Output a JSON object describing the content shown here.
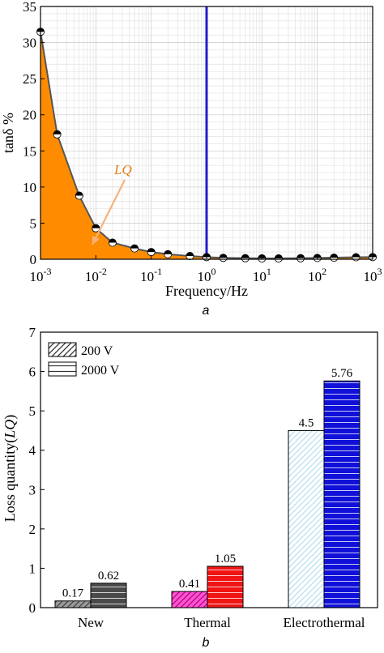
{
  "chart_data": [
    {
      "type": "area",
      "subplot_label": "a",
      "xlabel": "Frequency/Hz",
      "ylabel": "tanδ %",
      "xscale": "log",
      "xlim": [
        0.001,
        1000
      ],
      "ylim": [
        0,
        35
      ],
      "xticks": [
        0.001,
        0.01,
        0.1,
        1,
        10,
        100,
        1000
      ],
      "xtick_labels": [
        {
          "base": "10",
          "exp": "-3"
        },
        {
          "base": "10",
          "exp": "-2"
        },
        {
          "base": "10",
          "exp": "-1"
        },
        {
          "base": "10",
          "exp": "0"
        },
        {
          "base": "10",
          "exp": "1"
        },
        {
          "base": "10",
          "exp": "2"
        },
        {
          "base": "10",
          "exp": "3"
        }
      ],
      "yticks": [
        "0",
        "5",
        "10",
        "15",
        "20",
        "25",
        "30",
        "35"
      ],
      "grid": true,
      "fill_color": "#ff8c00",
      "line_color": "#555555",
      "marker_style": "half-filled circle",
      "x": [
        0.001,
        0.002,
        0.005,
        0.01,
        0.02,
        0.05,
        0.1,
        0.2,
        0.5,
        1,
        2,
        5,
        10,
        20,
        50,
        100,
        200,
        500,
        1000
      ],
      "y": [
        31.5,
        17.3,
        8.8,
        4.3,
        2.3,
        1.5,
        1.0,
        0.7,
        0.45,
        0.3,
        0.2,
        0.15,
        0.12,
        0.12,
        0.15,
        0.18,
        0.22,
        0.28,
        0.3
      ],
      "vline": {
        "x": 1,
        "color": "#1f1fd1"
      },
      "annotation": {
        "text": "LQ",
        "color": "#e87d13"
      }
    },
    {
      "type": "bar",
      "subplot_label": "b",
      "ylabel_main": "Loss quantity",
      "ylabel_italic": "LQ",
      "categories": [
        "New",
        "Thermal",
        "Electrothermal"
      ],
      "ylim": [
        0,
        7
      ],
      "yticks": [
        "0",
        "1",
        "2",
        "3",
        "4",
        "5",
        "6",
        "7"
      ],
      "legend_position": "top-left",
      "series": [
        {
          "name": "200 V",
          "pattern": "diagonal-hatch",
          "values": [
            0.17,
            0.41,
            4.5
          ],
          "labels": [
            "0.17",
            "0.41",
            "4.5"
          ],
          "colors": [
            "#9a9a9a",
            "#ff55c8",
            "#b7e0f2"
          ]
        },
        {
          "name": "2000 V",
          "pattern": "horizontal-lines",
          "values": [
            0.62,
            1.05,
            5.76
          ],
          "labels": [
            "0.62",
            "1.05",
            "5.76"
          ],
          "colors": [
            "#4a4a4a",
            "#f01414",
            "#1010d8"
          ]
        }
      ]
    }
  ]
}
